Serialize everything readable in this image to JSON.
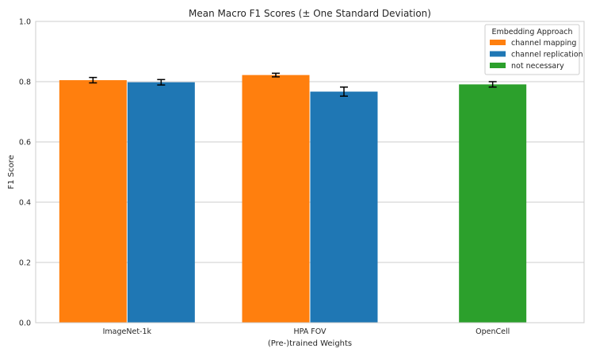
{
  "chart_data": {
    "type": "bar",
    "title": "Mean Macro F1 Scores (± One Standard Deviation)",
    "xlabel": "(Pre-)trained Weights",
    "ylabel": "F1 Score",
    "ylim": [
      0,
      1.0
    ],
    "yticks": [
      "0.0",
      "0.2",
      "0.4",
      "0.6",
      "0.8",
      "1.0"
    ],
    "categories": [
      "ImageNet-1k",
      "HPA FOV",
      "OpenCell"
    ],
    "grid": true,
    "legend": {
      "title": "Embedding Approach",
      "placement": "top-right"
    },
    "series": [
      {
        "name": "channel mapping",
        "color": "#ff7f0e",
        "values": [
          0.805,
          0.822,
          null
        ],
        "errors": [
          0.009,
          0.006,
          null
        ]
      },
      {
        "name": "channel replication",
        "color": "#1f77b4",
        "values": [
          0.798,
          0.767,
          null
        ],
        "errors": [
          0.009,
          0.015,
          null
        ]
      },
      {
        "name": "not necessary",
        "color": "#2ca02c",
        "values": [
          null,
          null,
          0.791
        ],
        "errors": [
          null,
          null,
          0.009
        ]
      }
    ]
  }
}
